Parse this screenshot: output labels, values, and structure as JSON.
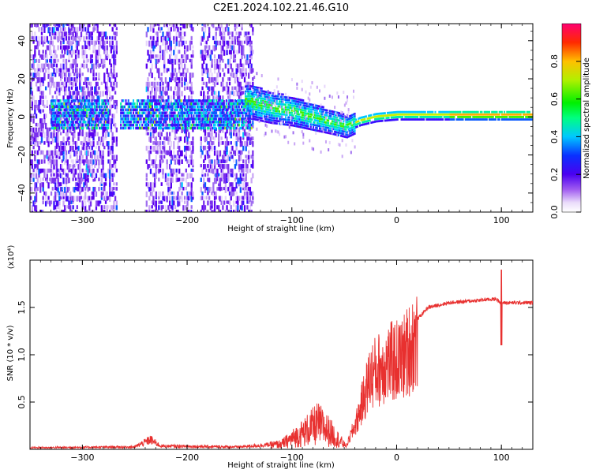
{
  "title": "C2E1.2024.102.21.46.G10",
  "chart_data": [
    {
      "type": "heatmap",
      "xlabel": "Height of straight line (km)",
      "ylabel": "Frequency (Hz)",
      "xlim": [
        -350,
        130
      ],
      "ylim": [
        -50,
        49
      ],
      "xticks": [
        -300,
        -200,
        -100,
        0,
        100
      ],
      "yticks": [
        -40,
        -20,
        0,
        20,
        40
      ],
      "colorbar": {
        "label": "Normalized spectral amplitude",
        "range": [
          0,
          1
        ],
        "ticks": [
          "0.0",
          "0.2",
          "0.4",
          "0.6",
          "0.8"
        ]
      },
      "ridge": [
        {
          "x": -140,
          "y": 8
        },
        {
          "x": -120,
          "y": 5
        },
        {
          "x": -100,
          "y": 3
        },
        {
          "x": -80,
          "y": 0
        },
        {
          "x": -60,
          "y": -3
        },
        {
          "x": -48,
          "y": -5
        },
        {
          "x": -35,
          "y": -2
        },
        {
          "x": -20,
          "y": 0
        },
        {
          "x": 0,
          "y": 1
        },
        {
          "x": 50,
          "y": 1
        },
        {
          "x": 100,
          "y": 1
        },
        {
          "x": 130,
          "y": 1
        }
      ]
    },
    {
      "type": "line",
      "xlabel": "Height of straight line (km)",
      "ylabel": "SNR (10 * v/v)",
      "yscale_label": "(x10⁴)",
      "xlim": [
        -350,
        130
      ],
      "ylim": [
        0,
        2.0
      ],
      "xticks": [
        -300,
        -200,
        -100,
        0,
        100
      ],
      "yticks": [
        "0.5",
        "1.0",
        "1.5"
      ],
      "ytick_values": [
        0.5,
        1.0,
        1.5
      ],
      "color": "#e8302f",
      "envelope": [
        {
          "x": -350,
          "y": 0.02
        },
        {
          "x": -250,
          "y": 0.03
        },
        {
          "x": -235,
          "y": 0.12
        },
        {
          "x": -225,
          "y": 0.04
        },
        {
          "x": -150,
          "y": 0.03
        },
        {
          "x": -110,
          "y": 0.07
        },
        {
          "x": -90,
          "y": 0.22
        },
        {
          "x": -75,
          "y": 0.35
        },
        {
          "x": -65,
          "y": 0.25
        },
        {
          "x": -48,
          "y": 0.04
        },
        {
          "x": -38,
          "y": 0.35
        },
        {
          "x": -25,
          "y": 0.9
        },
        {
          "x": -10,
          "y": 1.05
        },
        {
          "x": 5,
          "y": 1.1
        },
        {
          "x": 20,
          "y": 1.38
        },
        {
          "x": 30,
          "y": 1.5
        },
        {
          "x": 50,
          "y": 1.55
        },
        {
          "x": 95,
          "y": 1.59
        },
        {
          "x": 100,
          "y": 1.55
        },
        {
          "x": 130,
          "y": 1.55
        }
      ],
      "spikes": [
        {
          "x": 100,
          "y": 1.9
        },
        {
          "x": 100,
          "y": 1.1
        }
      ]
    }
  ]
}
